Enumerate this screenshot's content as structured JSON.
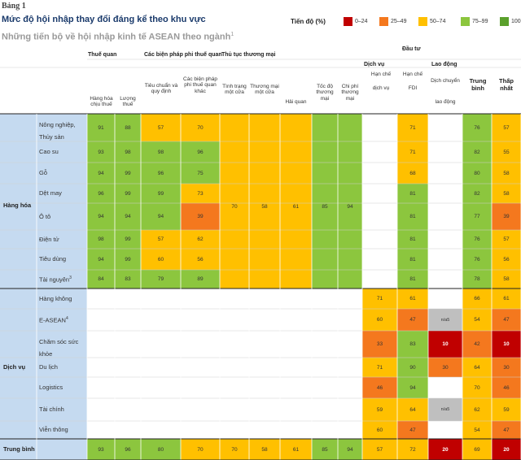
{
  "header": {
    "table_label": "Bảng 1",
    "title": "Mức độ hội nhập thay đổi đáng kể theo khu vực",
    "subtitle": "Những tiến bộ về hội nhập kinh tế ASEAN theo ngành",
    "subtitle_note": "1"
  },
  "legend": {
    "title": "Tiến độ (%)",
    "items": [
      {
        "label": "0–24",
        "color": "#c00000"
      },
      {
        "label": "25–49",
        "color": "#f4781e"
      },
      {
        "label": "50–74",
        "color": "#ffc000"
      },
      {
        "label": "75–99",
        "color": "#8cc63e"
      },
      {
        "label": "100",
        "color": "#5aa02c"
      }
    ]
  },
  "columns": {
    "group_tariff": "Thuế quan",
    "group_ntm": "Các biện pháp phi thuế quan",
    "group_trade": "Thủ tục thương mại",
    "group_invest": "Đầu tư",
    "group_services": "Dịch vụ",
    "group_labor": "Lao động",
    "tariff_rate": "Hàng hóa chịu thuế",
    "tariff_line": "Lượng thuế",
    "ntm_standards": "Tiêu chuẩn và quy định",
    "ntm_other": "Các biện pháp phi thuế quan khác",
    "trade_status": "Tình trạng một cửa",
    "trade_national": "Thương mại một cửa",
    "trade_customs": "Hải quan",
    "trade_speed": "Tốc độ thương mại",
    "trade_cost": "Chi phí thương mại",
    "svc_top": "Hạn chế",
    "svc_bottom": "dịch vụ",
    "fdi_top": "Hạn chế",
    "fdi_bottom": "FDI",
    "labor_top": "Dịch chuyển",
    "labor_bottom": "lao động",
    "avg": "Trung bình",
    "min": "Thấp nhất"
  },
  "groups": {
    "goods": "Hàng hóa",
    "services": "Dịch vụ",
    "average": "Trung bình"
  },
  "rows": [
    {
      "label": "Nông nghiệp,",
      "label2": "Thủy sản",
      "values": [
        "91",
        "88",
        "57",
        "70",
        "",
        "",
        "",
        "",
        "",
        "",
        "71",
        "",
        "76",
        "57"
      ]
    },
    {
      "label": "Cao su",
      "values": [
        "93",
        "98",
        "98",
        "96",
        "",
        "",
        "",
        "",
        "",
        "",
        "71",
        "",
        "82",
        "55"
      ]
    },
    {
      "label": "Gỗ",
      "values": [
        "94",
        "99",
        "96",
        "75",
        "",
        "",
        "",
        "",
        "",
        "",
        "68",
        "",
        "80",
        "58"
      ]
    },
    {
      "label": "Dệt may",
      "values": [
        "96",
        "99",
        "99",
        "73",
        "",
        "",
        "",
        "",
        "",
        "",
        "81",
        "",
        "82",
        "58"
      ]
    },
    {
      "label": "Ô tô",
      "values": [
        "94",
        "94",
        "94",
        "39",
        "70",
        "58",
        "61",
        "85",
        "94",
        "",
        "81",
        "",
        "77",
        "39"
      ]
    },
    {
      "label": "Điện tử",
      "values": [
        "98",
        "99",
        "57",
        "62",
        "",
        "",
        "",
        "",
        "",
        "",
        "81",
        "",
        "76",
        "57"
      ]
    },
    {
      "label": "Tiêu dùng",
      "values": [
        "94",
        "99",
        "60",
        "56",
        "",
        "",
        "",
        "",
        "",
        "",
        "81",
        "",
        "76",
        "56"
      ]
    },
    {
      "label": "Tài nguyên",
      "label_note": "3",
      "values": [
        "84",
        "83",
        "79",
        "89",
        "",
        "",
        "",
        "",
        "",
        "",
        "81",
        "",
        "78",
        "58"
      ]
    },
    {
      "label": "Hàng không",
      "values": [
        "",
        "",
        "",
        "",
        "",
        "",
        "",
        "",
        "",
        "71",
        "61",
        "",
        "66",
        "61"
      ]
    },
    {
      "label": "E-ASEAN",
      "label_note": "4",
      "values": [
        "",
        "",
        "",
        "",
        "",
        "",
        "",
        "",
        "",
        "60",
        "47",
        "n/a5",
        "54",
        "47"
      ]
    },
    {
      "label": "Chăm sóc sức",
      "label2": "khỏe",
      "values": [
        "",
        "",
        "",
        "",
        "",
        "",
        "",
        "",
        "",
        "33",
        "83",
        "10",
        "42",
        "10"
      ]
    },
    {
      "label": "Du lịch",
      "values": [
        "",
        "",
        "",
        "",
        "",
        "",
        "",
        "",
        "",
        "71",
        "90",
        "30",
        "64",
        "30"
      ]
    },
    {
      "label": "Logistics",
      "values": [
        "",
        "",
        "",
        "",
        "",
        "",
        "",
        "",
        "",
        "46",
        "94",
        "",
        "70",
        "46"
      ]
    },
    {
      "label": "Tài chính",
      "values": [
        "",
        "",
        "",
        "",
        "",
        "",
        "",
        "",
        "",
        "59",
        "64",
        "n/a5",
        "62",
        "59"
      ]
    },
    {
      "label": "Viễn thông",
      "values": [
        "",
        "",
        "",
        "",
        "",
        "",
        "",
        "",
        "",
        "60",
        "47",
        "",
        "54",
        "47"
      ]
    }
  ],
  "average_row": {
    "values": [
      "93",
      "96",
      "80",
      "70",
      "70",
      "58",
      "61",
      "85",
      "94",
      "57",
      "72",
      "20",
      "69",
      "20"
    ]
  }
}
